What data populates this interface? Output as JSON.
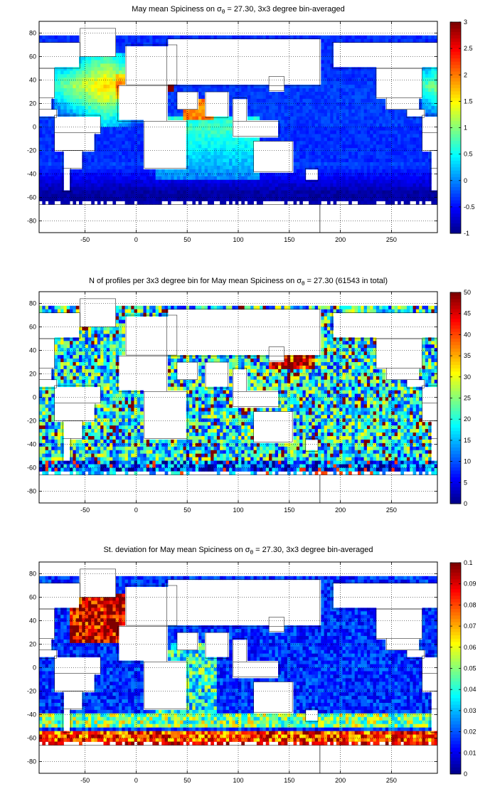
{
  "panels": [
    {
      "title_pre": "May mean Spiciness on σ",
      "title_sub": "θ",
      "title_post": " = 27.30, 3x3 degree bin-averaged",
      "colorbar": {
        "min": -1,
        "max": 3,
        "ticks": [
          "3",
          "2.5",
          "2",
          "1.5",
          "1",
          "0.5",
          "0",
          "-0.5",
          "-1"
        ]
      },
      "field": "spiciness"
    },
    {
      "title_pre": "N of profiles per 3x3 degree bin for May mean Spiciness on σ",
      "title_sub": "θ",
      "title_post": " = 27.30 (61543 in total)",
      "colorbar": {
        "min": 0,
        "max": 50,
        "ticks": [
          "50",
          "45",
          "40",
          "35",
          "30",
          "25",
          "20",
          "15",
          "10",
          "5",
          "0"
        ]
      },
      "field": "count"
    },
    {
      "title_pre": "St. deviation for May mean Spiciness on σ",
      "title_sub": "θ",
      "title_post": " = 27.30, 3x3 degree bin-averaged",
      "colorbar": {
        "min": 0,
        "max": 0.1,
        "ticks": [
          "0.1",
          "0.09",
          "0.08",
          "0.07",
          "0.06",
          "0.05",
          "0.04",
          "0.03",
          "0.02",
          "0.01",
          "0"
        ]
      },
      "field": "stddev"
    }
  ],
  "axes": {
    "x_ticks": [
      "-50",
      "0",
      "50",
      "100",
      "150",
      "200",
      "250"
    ],
    "x_values": [
      -50,
      0,
      50,
      100,
      150,
      200,
      250
    ],
    "y_ticks": [
      "80",
      "60",
      "40",
      "20",
      "0",
      "-20",
      "-40",
      "-60",
      "-80"
    ],
    "y_values": [
      80,
      60,
      40,
      20,
      0,
      -20,
      -40,
      -60,
      -80
    ],
    "xlim": [
      -95,
      295
    ],
    "ylim": [
      -90,
      90
    ]
  },
  "chart_data": {
    "type": "heatmap",
    "grid": "3x3 degree bins",
    "colormap": "jet"
  }
}
